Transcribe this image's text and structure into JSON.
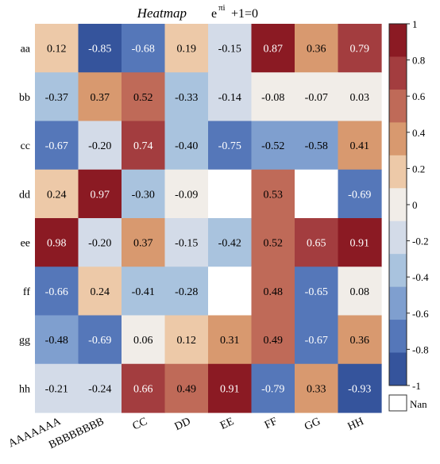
{
  "chart_data": {
    "type": "heatmap",
    "title": "Heatmap",
    "title_math": {
      "base": "e",
      "exponent": "πi",
      "tail": "+1=0"
    },
    "rows": [
      "aa",
      "bb",
      "cc",
      "dd",
      "ee",
      "ff",
      "gg",
      "hh"
    ],
    "columns": [
      "AAAAAAA",
      "BBBBBBBB",
      "CC",
      "DD",
      "EE",
      "FF",
      "GG",
      "HH"
    ],
    "values": [
      [
        0.12,
        -0.85,
        -0.68,
        0.19,
        -0.15,
        0.87,
        0.36,
        0.79
      ],
      [
        -0.37,
        0.37,
        0.52,
        -0.33,
        -0.14,
        -0.08,
        -0.07,
        0.03
      ],
      [
        -0.67,
        -0.2,
        0.74,
        -0.4,
        -0.75,
        -0.52,
        -0.58,
        0.41
      ],
      [
        0.24,
        0.97,
        -0.3,
        -0.09,
        null,
        0.53,
        null,
        -0.69
      ],
      [
        0.98,
        -0.2,
        0.37,
        -0.15,
        -0.42,
        0.52,
        0.65,
        0.91
      ],
      [
        -0.66,
        0.24,
        -0.41,
        -0.28,
        null,
        0.48,
        -0.65,
        0.08
      ],
      [
        -0.48,
        -0.69,
        0.06,
        0.12,
        0.31,
        0.49,
        -0.67,
        0.36
      ],
      [
        -0.21,
        -0.24,
        0.66,
        0.49,
        0.91,
        -0.79,
        0.33,
        -0.93
      ]
    ],
    "color_range": [
      -1,
      1
    ],
    "colorbar_ticks": [
      "1",
      "0.8",
      "0.6",
      "0.4",
      "0.2",
      "0",
      "-0.2",
      "-0.4",
      "-0.6",
      "-0.8",
      "-1"
    ],
    "colorbar_colors": [
      "#8b1a23",
      "#a33d3f",
      "#bf6a58",
      "#d8996f",
      "#edc9a8",
      "#f1ede8",
      "#d3dbe8",
      "#a9c3de",
      "#7f9fcf",
      "#5577b9",
      "#35549c"
    ],
    "nan_label": "Nan",
    "nan_color": "#ffffff",
    "value_format": "2 decimals",
    "cell_text_color_light": "#ffffff",
    "cell_text_color_dark": "#000000"
  }
}
